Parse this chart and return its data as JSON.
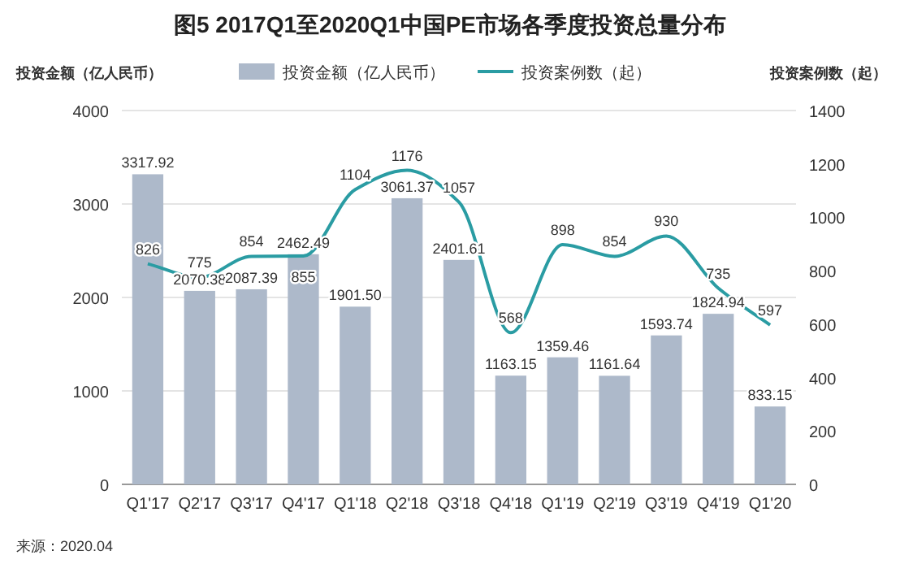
{
  "chart_data": {
    "type": "bar",
    "title": "图5 2017Q1至2020Q1中国PE市场各季度投资总量分布",
    "ylabel": "投资金额（亿人民币）",
    "y2label": "投资案例数（起）",
    "categories": [
      "Q1'17",
      "Q2'17",
      "Q3'17",
      "Q4'17",
      "Q1'18",
      "Q2'18",
      "Q3'18",
      "Q4'18",
      "Q1'19",
      "Q2'19",
      "Q3'19",
      "Q4'19",
      "Q1'20"
    ],
    "series": [
      {
        "name": "投资金额（亿人民币）",
        "color": "#adb9ca",
        "values": [
          3317.92,
          2070.38,
          2087.39,
          2462.49,
          1901.5,
          3061.37,
          2401.61,
          1163.15,
          1359.46,
          1161.64,
          1593.74,
          1824.94,
          833.15
        ],
        "value_labels": [
          "3317.92",
          "2070.38",
          "2087.39",
          "2462.49",
          "1901.50",
          "3061.37",
          "2401.61",
          "1163.15",
          "1359.46",
          "1161.64",
          "1593.74",
          "1824.94",
          "833.15"
        ]
      },
      {
        "name": "投资案例数（起）",
        "type": "line",
        "axis": "y2",
        "color": "#2a9ca3",
        "values": [
          826,
          775,
          854,
          855,
          1104,
          1176,
          1057,
          568,
          898,
          854,
          930,
          735,
          597
        ],
        "value_labels": [
          "826",
          "775",
          "854",
          "855",
          "1104",
          "1176",
          "1057",
          "568",
          "898",
          "854",
          "930",
          "735",
          "597"
        ]
      }
    ],
    "ylim": [
      0,
      4000
    ],
    "yticks": [
      0,
      1000,
      2000,
      3000,
      4000
    ],
    "y2lim": [
      0,
      1400
    ],
    "y2ticks": [
      0,
      200,
      400,
      600,
      800,
      1000,
      1200,
      1400
    ],
    "grid": "y",
    "legend": "top",
    "marker": "none",
    "line_style": "solid",
    "annotations": [
      "来源：2020.04"
    ]
  }
}
